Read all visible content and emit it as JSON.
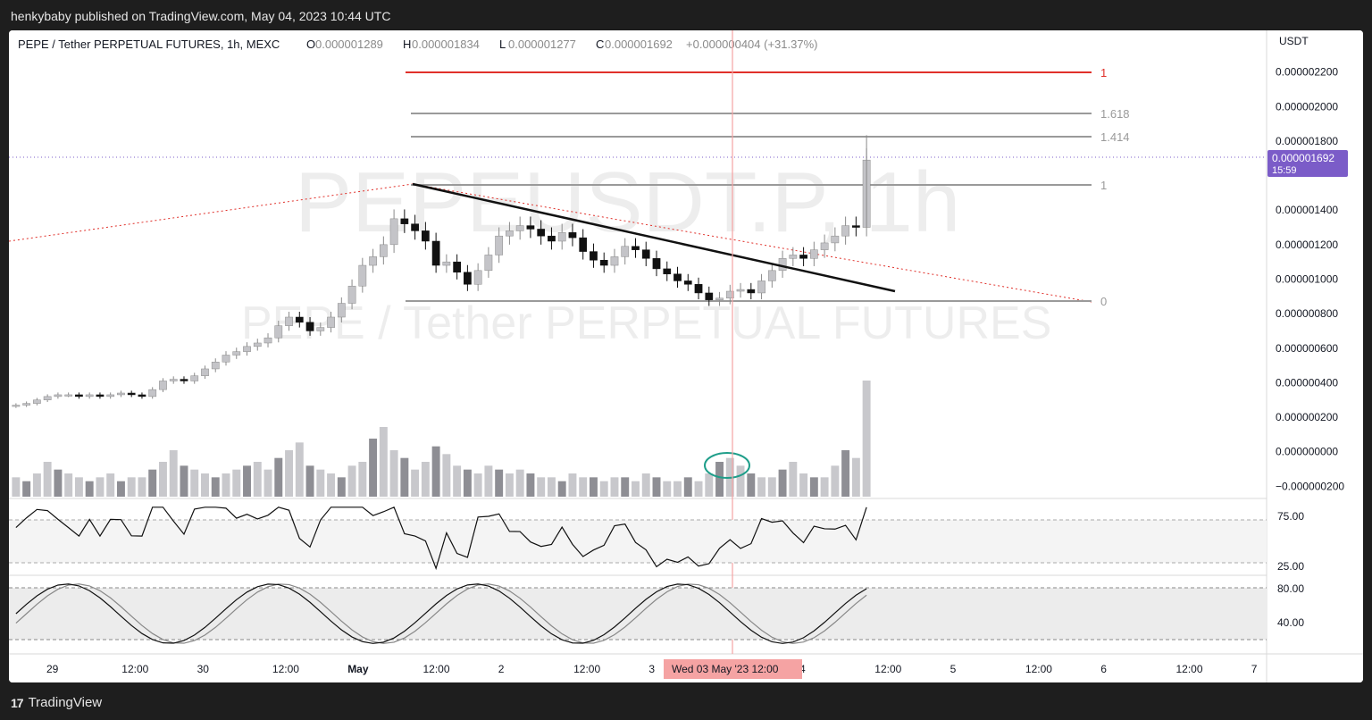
{
  "header": {
    "published_by": "henkybaby published on TradingView.com, May 04, 2023 10:44 UTC"
  },
  "footer": {
    "brand": "TradingView",
    "brand_icon": "tradingview-logo-icon"
  },
  "chart_data": {
    "type": "candlestick",
    "symbol_title": "PEPE / Tether PERPETUAL FUTURES, 1h, MEXC",
    "ohlc": {
      "o_label": "O",
      "o": "0.000001289",
      "h_label": "H",
      "h": "0.000001834",
      "l_label": "L",
      "l": "0.000001277",
      "c_label": "C",
      "c": "0.000001692",
      "change": "+0.000000404 (+31.37%)"
    },
    "watermark_symbol": "PEPEUSDT.P, 1h",
    "watermark_name": "PEPE / Tether PERPETUAL FUTURES",
    "currency": "USDT",
    "last_price_tag": "0.000001692",
    "countdown": "15:59",
    "price_axis": {
      "ticks": [
        2.2e-06,
        2e-06,
        1.8e-06,
        1.4e-06,
        1.2e-06,
        1e-06,
        8e-07,
        6e-07,
        4e-07,
        2e-07,
        0.0,
        -2e-07
      ],
      "tick_labels": [
        "0.000002200",
        "0.000002000",
        "0.000001800",
        "0.000001400",
        "0.000001200",
        "0.000001000",
        "0.000000800",
        "0.000000600",
        "0.000000400",
        "0.000000200",
        "0.000000000",
        "−0.000000200"
      ],
      "range": [
        -2.5e-07,
        2.4e-06
      ]
    },
    "x_axis": {
      "labels": [
        "29",
        "12:00",
        "30",
        "12:00",
        "May",
        "12:00",
        "2",
        "12:00",
        "3",
        "12:00",
        "4",
        "12:00",
        "5",
        "12:00",
        "6",
        "12:00",
        "7"
      ],
      "crosshair_label": "Wed 03 May '23   12:00"
    },
    "fib_levels": [
      {
        "label": "1",
        "price": 2.2e-06
      },
      {
        "label": "1.618",
        "price": 1.96e-06
      },
      {
        "label": "1.414",
        "price": 1.82e-06
      },
      {
        "label": "1",
        "price": 1.53e-06
      },
      {
        "label": "0",
        "price": 8.3e-07
      }
    ],
    "close_series_approx": [
      2.7e-07,
      2.8e-07,
      3e-07,
      3.2e-07,
      3.3e-07,
      3.3e-07,
      3.2e-07,
      3.3e-07,
      3.2e-07,
      3.3e-07,
      3.4e-07,
      3.3e-07,
      3.2e-07,
      3.6e-07,
      4.1e-07,
      4.2e-07,
      4.1e-07,
      4.4e-07,
      4.8e-07,
      5.2e-07,
      5.6e-07,
      5.8e-07,
      6.1e-07,
      6.3e-07,
      6.6e-07,
      7.3e-07,
      7.8e-07,
      7.5e-07,
      7e-07,
      7.2e-07,
      7.8e-07,
      8.6e-07,
      9.6e-07,
      1.08e-06,
      1.13e-06,
      1.2e-06,
      1.35e-06,
      1.32e-06,
      1.28e-06,
      1.22e-06,
      1.08e-06,
      1.1e-06,
      1.04e-06,
      9.7e-07,
      1.05e-06,
      1.14e-06,
      1.25e-06,
      1.28e-06,
      1.31e-06,
      1.29e-06,
      1.25e-06,
      1.22e-06,
      1.27e-06,
      1.24e-06,
      1.16e-06,
      1.11e-06,
      1.08e-06,
      1.13e-06,
      1.19e-06,
      1.17e-06,
      1.12e-06,
      1.06e-06,
      1.03e-06,
      9.9e-07,
      9.7e-07,
      9.2e-07,
      8.8e-07,
      8.9e-07,
      9.3e-07,
      9.4e-07,
      9.2e-07,
      9.9e-07,
      1.05e-06,
      1.12e-06,
      1.14e-06,
      1.12e-06,
      1.17e-06,
      1.21e-06,
      1.25e-06,
      1.31e-06,
      1.3e-06,
      1.69e-06
    ],
    "volume_series_approx": [
      5,
      4,
      6,
      9,
      7,
      6,
      5,
      4,
      5,
      6,
      4,
      5,
      5,
      7,
      9,
      12,
      8,
      7,
      6,
      5,
      6,
      7,
      8,
      9,
      7,
      10,
      12,
      14,
      8,
      7,
      6,
      5,
      8,
      9,
      15,
      18,
      12,
      10,
      7,
      9,
      13,
      11,
      8,
      7,
      6,
      8,
      7,
      6,
      7,
      6,
      5,
      5,
      4,
      6,
      5,
      5,
      4,
      5,
      5,
      4,
      6,
      5,
      4,
      4,
      5,
      4,
      6,
      9,
      10,
      8,
      6,
      5,
      5,
      7,
      9,
      6,
      5,
      5,
      8,
      12,
      10,
      30
    ],
    "rsi": {
      "upper": 75.0,
      "lower": 25.0,
      "upper_label": "75.00",
      "lower_label": "25.00"
    },
    "stoch_rsi": {
      "upper": 80.0,
      "lower": 20.0,
      "upper_label": "80.00",
      "mid_label": "40.00"
    },
    "colors": {
      "up": "#c4c4c8",
      "down": "#111111",
      "fib_red": "#e0302a",
      "fib_gray": "#9a9a9a",
      "crosshair": "#f5a3a3",
      "last_price": "#7b5cc8",
      "circle": "#1f9e8a"
    }
  }
}
